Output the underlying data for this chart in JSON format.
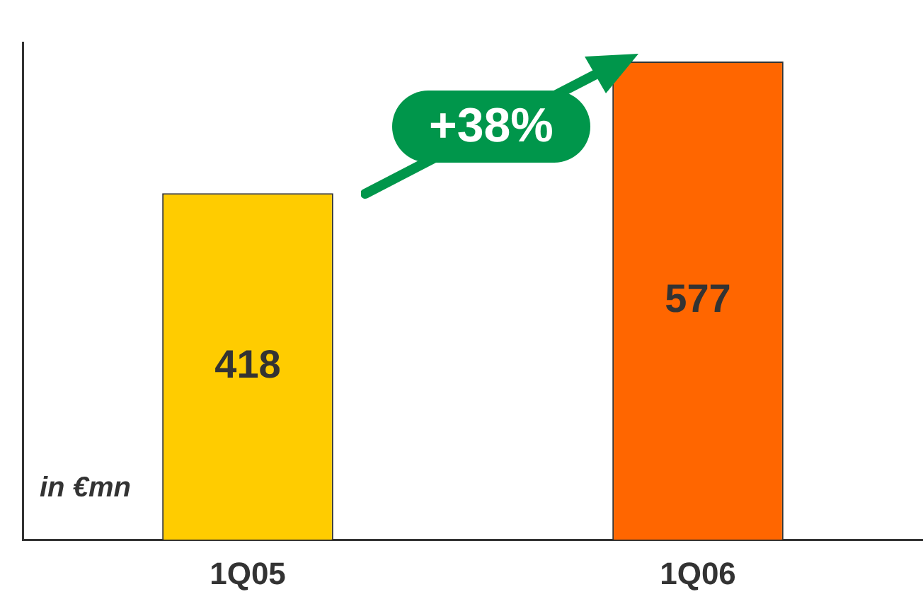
{
  "chart_data": {
    "type": "bar",
    "categories": [
      "1Q05",
      "1Q06"
    ],
    "values": [
      418,
      577
    ],
    "colors": [
      "#ffcc00",
      "#ff6600"
    ],
    "data_labels": true,
    "grid": false,
    "legend": false,
    "tick_labels": "x",
    "annotations": [
      "+38%",
      "in €mn"
    ]
  }
}
